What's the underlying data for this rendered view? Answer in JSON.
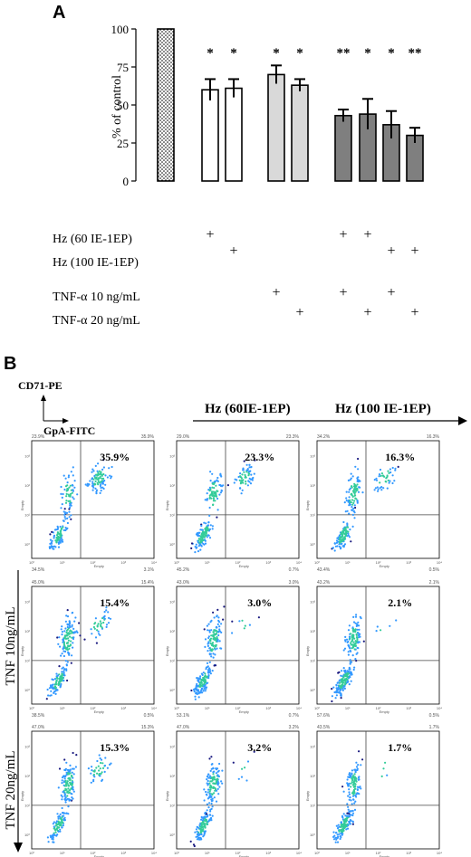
{
  "chart_data": [
    {
      "type": "bar",
      "panel_label": "A",
      "ylabel": "% of control",
      "ylim": [
        0,
        100
      ],
      "yticks": [
        "0",
        "25",
        "50",
        "75",
        "100"
      ],
      "values": [
        100,
        60,
        61,
        70,
        63,
        43,
        44,
        37,
        30
      ],
      "errors": [
        0,
        7,
        6,
        6,
        4,
        4,
        10,
        9,
        5
      ],
      "significance": [
        "",
        "*",
        "*",
        "*",
        "*",
        "**",
        "*",
        "*",
        "**"
      ],
      "bar_fills": [
        "dotted",
        "#ffffff",
        "#ffffff",
        "#d9d9d9",
        "#d9d9d9",
        "#7f7f7f",
        "#7f7f7f",
        "#7f7f7f",
        "#7f7f7f"
      ],
      "conditions": [
        {
          "label": "Hz (60 IE-1EP)",
          "marks": [
            1,
            5,
            6
          ]
        },
        {
          "label": "Hz (100 IE-1EP)",
          "marks": [
            2,
            7,
            8
          ]
        },
        {
          "label": "TNF-α 10 ng/mL",
          "marks": [
            3,
            5,
            7
          ]
        },
        {
          "label": "TNF-α 20 ng/mL",
          "marks": [
            4,
            6,
            8
          ]
        }
      ],
      "plus_symbol": "+",
      "grid": false
    },
    {
      "type": "scatter",
      "panel_label": "B",
      "axis_key": {
        "y_label": "CD71-PE",
        "x_label": "GpA-FITC"
      },
      "column_headers": [
        "Hz (60IE-1EP)",
        "Hz (100 IE-1EP)"
      ],
      "row_labels": [
        "TNF 10ng/mL",
        "TNF 20ng/mL"
      ],
      "axis_name": "Empty",
      "plots": [
        {
          "percent": "35.9%",
          "ul": "23.9%",
          "ur": "35.9%",
          "ll": "34.5%",
          "lr": "3.1%"
        },
        {
          "percent": "23.3%",
          "ul": "29.0%",
          "ur": "23.3%",
          "ll": "45.2%",
          "lr": "0.7%"
        },
        {
          "percent": "16.3%",
          "ul": "34.2%",
          "ur": "16.3%",
          "ll": "43.4%",
          "lr": "0.5%"
        },
        {
          "percent": "15.4%",
          "ul": "45.0%",
          "ur": "15.4%",
          "ll": "38.5%",
          "lr": "0.5%"
        },
        {
          "percent": "3.0%",
          "ul": "43.0%",
          "ur": "3.0%",
          "ll": "53.1%",
          "lr": "0.7%"
        },
        {
          "percent": "2.1%",
          "ul": "43.2%",
          "ur": "2.1%",
          "ll": "57.6%",
          "lr": "0.5%"
        },
        {
          "percent": "15.3%",
          "ul": "47.0%",
          "ur": "15.3%",
          "ll": "35.4%",
          "lr": "0.5%"
        },
        {
          "percent": "3.2%",
          "ul": "47.0%",
          "ur": "3.2%",
          "ll": "43.0%",
          "lr": "0.1%"
        },
        {
          "percent": "1.7%",
          "ul": "43.5%",
          "ur": "1.7%",
          "ll": "52.2%",
          "lr": "0.0%"
        }
      ],
      "colors": {
        "low": "#33cc99",
        "mid": "#3399ff",
        "high": "#1a1a80"
      }
    }
  ]
}
